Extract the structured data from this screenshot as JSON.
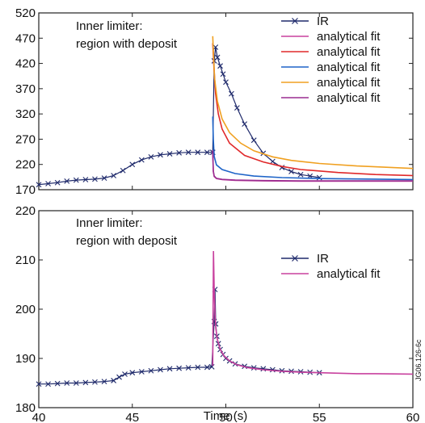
{
  "figure_code": "JG06.126-6c",
  "chart_data": [
    {
      "type": "line",
      "annotation": [
        "Inner limiter:",
        "region with deposit"
      ],
      "xlim": [
        40,
        60
      ],
      "ylim": [
        170,
        520
      ],
      "yticks": [
        170,
        220,
        270,
        320,
        370,
        420,
        470,
        520
      ],
      "xticks_labeled": false,
      "series": [
        {
          "name": "IR",
          "color": "#1f2a6b",
          "marker": "x",
          "x": [
            40,
            40.5,
            41,
            41.5,
            42,
            42.5,
            43,
            43.5,
            44,
            44.5,
            45,
            45.5,
            46,
            46.5,
            47,
            47.5,
            48,
            48.5,
            49,
            49.3,
            49.38,
            49.45,
            49.55,
            49.7,
            49.85,
            50,
            50.3,
            50.6,
            51,
            51.5,
            52,
            52.5,
            53,
            53.5,
            54,
            54.5,
            55
          ],
          "y": [
            180,
            182,
            184,
            187,
            189,
            190,
            191,
            193,
            198,
            208,
            220,
            229,
            235,
            239,
            241,
            243,
            244,
            244,
            244,
            244,
            425,
            452,
            432,
            415,
            399,
            383,
            360,
            332,
            300,
            268,
            242,
            226,
            214,
            206,
            200,
            197,
            194
          ]
        },
        {
          "name": "analytical fit",
          "color": "#c8409e",
          "x": [
            49.3,
            49.33,
            49.38,
            49.5,
            49.8,
            50.5,
            52,
            54,
            56,
            58,
            60
          ],
          "y": [
            245,
            206,
            196,
            192,
            190,
            188.5,
            187.5,
            187,
            187,
            187,
            187
          ]
        },
        {
          "name": "analytical fit",
          "color": "#e0282a",
          "x": [
            49.3,
            49.35,
            49.45,
            49.6,
            49.8,
            50.2,
            51,
            52,
            53,
            54,
            56,
            58,
            60
          ],
          "y": [
            460,
            420,
            360,
            320,
            290,
            262,
            238,
            225,
            216,
            210,
            204,
            200,
            198
          ]
        },
        {
          "name": "analytical fit",
          "color": "#1e64c8",
          "x": [
            49.3,
            49.33,
            49.38,
            49.5,
            49.8,
            50.5,
            51.5,
            53,
            55,
            58,
            60
          ],
          "y": [
            315,
            270,
            236,
            219,
            210,
            202,
            197,
            194,
            192,
            191,
            190
          ]
        },
        {
          "name": "analytical fit",
          "color": "#f0a020",
          "x": [
            49.3,
            49.33,
            49.4,
            49.55,
            49.8,
            50.2,
            50.8,
            51.5,
            52.5,
            53.5,
            55,
            57,
            60
          ],
          "y": [
            474,
            445,
            390,
            345,
            310,
            283,
            262,
            247,
            235,
            228,
            222,
            217,
            212
          ]
        },
        {
          "name": "analytical fit",
          "color": "#9a2d90",
          "x": [
            49.3,
            49.33,
            49.38,
            49.5,
            49.8,
            50.5,
            52,
            54,
            56,
            58,
            60
          ],
          "y": [
            248,
            207,
            197,
            192.5,
            190.5,
            189,
            188,
            187.5,
            187.5,
            187.5,
            187.5
          ]
        }
      ],
      "legend": "top-right"
    },
    {
      "type": "line",
      "annotation": [
        "Inner limiter:",
        "region with deposit"
      ],
      "xlim": [
        40,
        60
      ],
      "ylim": [
        180,
        220
      ],
      "yticks": [
        180,
        190,
        200,
        210,
        220
      ],
      "xticks": [
        40,
        45,
        50,
        55,
        60
      ],
      "xlabel": "Time (s)",
      "series": [
        {
          "name": "IR",
          "color": "#1f2a6b",
          "marker": "x",
          "x": [
            40,
            40.5,
            41,
            41.5,
            42,
            42.5,
            43,
            43.5,
            44,
            44.3,
            44.6,
            45,
            45.5,
            46,
            46.5,
            47,
            47.5,
            48,
            48.5,
            49,
            49.25,
            49.38,
            49.42,
            49.46,
            49.52,
            49.6,
            49.7,
            49.85,
            50,
            50.2,
            50.5,
            51,
            51.5,
            52,
            52.5,
            53,
            53.5,
            54,
            54.5,
            55
          ],
          "y": [
            184.8,
            184.8,
            184.9,
            185,
            185,
            185.1,
            185.2,
            185.3,
            185.5,
            186.2,
            186.8,
            187.1,
            187.3,
            187.5,
            187.7,
            187.9,
            188,
            188.1,
            188.2,
            188.2,
            188.3,
            197.5,
            204,
            197,
            194.5,
            193,
            191.8,
            190.8,
            190,
            189.5,
            188.9,
            188.4,
            188.1,
            187.9,
            187.7,
            187.5,
            187.4,
            187.3,
            187.2,
            187.1
          ]
        },
        {
          "name": "analytical fit",
          "color": "#c8409e",
          "x": [
            49.3,
            49.34,
            49.38,
            49.42,
            49.47,
            49.55,
            49.7,
            49.9,
            50.2,
            50.6,
            51.2,
            52,
            53,
            54,
            55,
            56,
            57,
            58,
            59,
            60
          ],
          "y": [
            188.5,
            211.8,
            204,
            199,
            196,
            193.8,
            191.8,
            190.5,
            189.5,
            188.7,
            188.1,
            187.7,
            187.4,
            187.2,
            187.1,
            187,
            186.9,
            186.9,
            186.85,
            186.8
          ]
        }
      ],
      "legend": "center-right"
    }
  ]
}
